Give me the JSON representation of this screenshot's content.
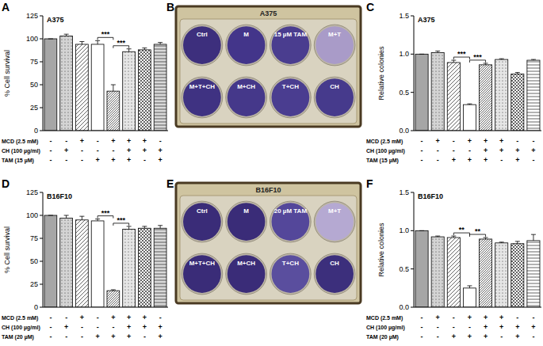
{
  "chart_data": [
    {
      "type": "bar",
      "panel_label": "A",
      "title": "A375",
      "y_label": "% Cell survival",
      "categories": [
        null,
        null,
        null,
        null,
        null,
        null,
        null,
        null
      ],
      "values": [
        100,
        103,
        94,
        94,
        43,
        86,
        88,
        94
      ],
      "errors": [
        0,
        2,
        3,
        4,
        7,
        3,
        2,
        2
      ],
      "colors": [
        "#a6a6a6",
        "#d4d4d4",
        "#ffffff",
        "#ffffff",
        "#ffffff",
        "#e6e6e6",
        "#ffffff",
        "#d9d9d9"
      ],
      "ylim": [
        0,
        125
      ],
      "yticks": [
        0,
        25,
        50,
        75,
        100,
        125
      ],
      "grid": false,
      "annotations": [
        {
          "text": "***",
          "from": 3,
          "to": 4
        },
        {
          "text": "***",
          "from": 4,
          "to": 5
        }
      ],
      "conditions": [
        {
          "name": "MCD (2.5 mM)",
          "values": [
            "-",
            "-",
            "+",
            "-",
            "+",
            "+",
            "+",
            "-"
          ]
        },
        {
          "name": "CH (100 µg/ml)",
          "values": [
            "-",
            "+",
            "-",
            "-",
            "-",
            "+",
            "+",
            "+"
          ]
        },
        {
          "name": "TAM (15 µM)",
          "values": [
            "-",
            "-",
            "-",
            "+",
            "+",
            "+",
            "-",
            "+"
          ]
        }
      ]
    },
    {
      "type": "bar",
      "panel_label": "C",
      "title": "A375",
      "y_label": "Relative colonies",
      "categories": [
        null,
        null,
        null,
        null,
        null,
        null,
        null,
        null
      ],
      "values": [
        1.0,
        1.02,
        0.89,
        0.34,
        0.86,
        0.93,
        0.74,
        0.92
      ],
      "errors": [
        0,
        0.02,
        0.03,
        0.01,
        0.02,
        0.01,
        0.02,
        0.01
      ],
      "colors": [
        "#a6a6a6",
        "#d4d4d4",
        "#ffffff",
        "#ffffff",
        "#ffffff",
        "#e6e6e6",
        "#ffffff",
        "#ffffff"
      ],
      "ylim": [
        0,
        1.5
      ],
      "yticks": [
        {
          "value": 0,
          "label": "0.0"
        },
        0.5,
        {
          "value": 1,
          "label": "1.0"
        },
        1.5
      ],
      "grid": false,
      "annotations": [
        {
          "text": "***",
          "from": 2,
          "to": 3
        },
        {
          "text": "***",
          "from": 3,
          "to": 4
        }
      ],
      "conditions": [
        {
          "name": "MCD (2.5 mM)",
          "values": [
            "-",
            "+",
            "-",
            "+",
            "+",
            "+",
            "-",
            "-"
          ]
        },
        {
          "name": "CH (100 µg/ml)",
          "values": [
            "-",
            "-",
            "-",
            "-",
            "+",
            "+",
            "+",
            "+"
          ]
        },
        {
          "name": "TAM (15 µM)",
          "values": [
            "-",
            "-",
            "+",
            "+",
            "+",
            "-",
            "+",
            "-"
          ]
        }
      ]
    },
    {
      "type": "bar",
      "panel_label": "D",
      "title": "B16F10",
      "y_label": "% Cell survival",
      "categories": [
        null,
        null,
        null,
        null,
        null,
        null,
        null,
        null
      ],
      "values": [
        100,
        97,
        95,
        94,
        18,
        85,
        86,
        86
      ],
      "errors": [
        0,
        3,
        4,
        2,
        1,
        3,
        2,
        3
      ],
      "colors": [
        "#a6a6a6",
        "#d4d4d4",
        "#ffffff",
        "#ffffff",
        "#ffffff",
        "#e6e6e6",
        "#ffffff",
        "#d9d9d9"
      ],
      "ylim": [
        0,
        125
      ],
      "yticks": [
        0,
        25,
        50,
        75,
        100,
        125
      ],
      "grid": false,
      "annotations": [
        {
          "text": "***",
          "from": 3,
          "to": 4
        },
        {
          "text": "***",
          "from": 4,
          "to": 5
        }
      ],
      "conditions": [
        {
          "name": "MCD (2.5 mM)",
          "values": [
            "-",
            "-",
            "+",
            "-",
            "+",
            "+",
            "+",
            "-"
          ]
        },
        {
          "name": "CH (100 µg/ml)",
          "values": [
            "-",
            "+",
            "-",
            "-",
            "-",
            "+",
            "+",
            "+"
          ]
        },
        {
          "name": "TAM (20 µM)",
          "values": [
            "-",
            "-",
            "-",
            "+",
            "+",
            "+",
            "-",
            "+"
          ]
        }
      ]
    },
    {
      "type": "bar",
      "panel_label": "F",
      "title": "B16F10",
      "y_label": "Relative colonies",
      "categories": [
        null,
        null,
        null,
        null,
        null,
        null,
        null,
        null
      ],
      "values": [
        1.0,
        0.92,
        0.91,
        0.25,
        0.89,
        0.84,
        0.83,
        0.87
      ],
      "errors": [
        0,
        0.01,
        0.02,
        0.03,
        0.02,
        0.01,
        0.03,
        0.08
      ],
      "colors": [
        "#a6a6a6",
        "#d4d4d4",
        "#ffffff",
        "#ffffff",
        "#ffffff",
        "#e6e6e6",
        "#ffffff",
        "#ffffff"
      ],
      "ylim": [
        0,
        1.5
      ],
      "yticks": [
        {
          "value": 0,
          "label": "0.0"
        },
        0.5,
        {
          "value": 1,
          "label": "1.0"
        },
        1.5
      ],
      "grid": false,
      "annotations": [
        {
          "text": "**",
          "from": 2,
          "to": 3
        },
        {
          "text": "**",
          "from": 3,
          "to": 4
        }
      ],
      "conditions": [
        {
          "name": "MCD (2.5 mM)",
          "values": [
            "-",
            "+",
            "-",
            "+",
            "+",
            "+",
            "-",
            "-"
          ]
        },
        {
          "name": "CH (100 µg/ml)",
          "values": [
            "-",
            "-",
            "-",
            "-",
            "+",
            "+",
            "+",
            "+"
          ]
        },
        {
          "name": "TAM (20 µM)",
          "values": [
            "-",
            "-",
            "+",
            "+",
            "+",
            "-",
            "+",
            "-"
          ]
        }
      ]
    }
  ],
  "plates": [
    {
      "panel_label": "B",
      "title": "A375",
      "wells": [
        "Ctrl",
        "M",
        "15 µM TAM",
        "M+T",
        "M+T+CH",
        "M+CH",
        "T+CH",
        "CH"
      ],
      "colors": [
        "#3d2f7d",
        "#43358a",
        "#4a3d8f",
        "#a99bc8",
        "#3f3282",
        "#45388a",
        "#4a3d90",
        "#463a8c"
      ]
    },
    {
      "panel_label": "E",
      "title": "B16F10",
      "wells": [
        "Ctrl",
        "M",
        "20 µM TAM",
        "M+T",
        "M+T+CH",
        "M+CH",
        "T+CH",
        "CH"
      ],
      "colors": [
        "#3a2c78",
        "#3a2c78",
        "#54479a",
        "#b5a9d2",
        "#3a2c78",
        "#3a2c78",
        "#5a4e9e",
        "#3c2f7c"
      ]
    }
  ]
}
